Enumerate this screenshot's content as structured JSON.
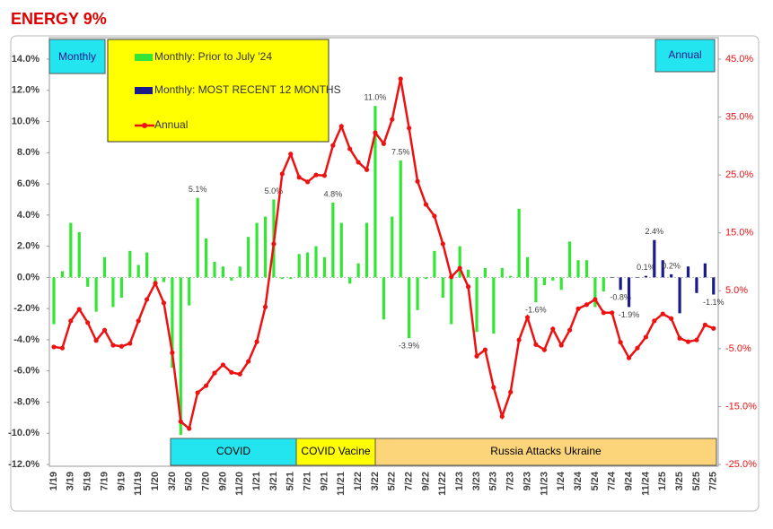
{
  "chart_data": {
    "type": "combo",
    "title": "ENERGY 9%",
    "left_box": "Monthly",
    "right_box": "Annual",
    "bands": [
      "COVID",
      "COVID Vacine",
      "Russia Attacks Ukraine"
    ],
    "categories": [
      "1/19",
      null,
      "3/19",
      null,
      "5/19",
      null,
      "7/19",
      null,
      "9/19",
      null,
      "11/19",
      null,
      "1/20",
      null,
      "3/20",
      null,
      "5/20",
      null,
      "7/20",
      null,
      "9/20",
      null,
      "11/20",
      null,
      "1/21",
      null,
      "3/21",
      null,
      "5/21",
      null,
      "7/21",
      null,
      "9/21",
      null,
      "11/21",
      null,
      "1/22",
      null,
      "3/22",
      null,
      "5/22",
      null,
      "7/22",
      null,
      "9/22",
      null,
      "11/22",
      null,
      "1/23",
      null,
      "3/23",
      null,
      "5/23",
      null,
      "7/23",
      null,
      "9/23",
      null,
      "11/23",
      null,
      "1/24",
      null,
      "3/24",
      null,
      "5/24",
      null,
      "7/24",
      null,
      "9/24",
      null,
      "11/24",
      null,
      "1/25",
      null,
      "3/25",
      null,
      "5/25",
      null,
      "7/25"
    ],
    "series": [
      {
        "name": "Monthly: Prior to July '24",
        "color": "#33e633",
        "kind": "bar",
        "values": [
          -3.0,
          0.4,
          3.5,
          2.9,
          -0.6,
          -2.2,
          1.3,
          -1.9,
          -1.3,
          1.7,
          0.8,
          1.6,
          -0.3,
          -0.3,
          -5.8,
          -10.1,
          -1.8,
          5.1,
          2.5,
          1.0,
          0.7,
          -0.2,
          0.7,
          2.6,
          3.5,
          3.9,
          5.0,
          -0.1,
          -0.1,
          1.5,
          1.6,
          2.0,
          1.3,
          4.8,
          3.5,
          -0.4,
          0.9,
          3.5,
          11.0,
          -2.7,
          3.9,
          7.5,
          -3.9,
          -2.1,
          -0.1,
          1.7,
          -1.3,
          -3.0,
          2.0,
          0.5,
          -3.5,
          0.6,
          -3.6,
          0.6,
          0.1,
          4.4,
          1.3,
          -1.6,
          -0.5,
          -0.2,
          -0.8,
          2.3,
          1.1,
          1.1,
          -1.9,
          -0.9,
          null,
          null,
          null,
          null,
          null,
          null,
          null,
          null,
          null,
          null,
          null,
          null,
          null
        ],
        "value_labels": [
          null,
          null,
          null,
          null,
          null,
          null,
          null,
          null,
          null,
          null,
          null,
          null,
          null,
          null,
          null,
          null,
          null,
          "5.1%",
          null,
          null,
          null,
          null,
          null,
          null,
          null,
          null,
          "5.0%",
          null,
          null,
          null,
          null,
          null,
          null,
          "4.8%",
          null,
          null,
          null,
          null,
          "11.0%",
          null,
          null,
          "7.5%",
          "-3.9%",
          null,
          null,
          null,
          null,
          null,
          null,
          null,
          null,
          null,
          null,
          null,
          null,
          null,
          null,
          "-1.6%",
          null,
          null,
          null,
          null,
          null,
          null,
          null,
          null,
          null,
          null,
          null,
          null,
          null,
          null,
          null,
          null,
          null,
          null,
          null,
          null,
          null
        ]
      },
      {
        "name": "Monthly: MOST RECENT 12 MONTHS",
        "color": "#1a1a8c",
        "kind": "bar",
        "values": [
          null,
          null,
          null,
          null,
          null,
          null,
          null,
          null,
          null,
          null,
          null,
          null,
          null,
          null,
          null,
          null,
          null,
          null,
          null,
          null,
          null,
          null,
          null,
          null,
          null,
          null,
          null,
          null,
          null,
          null,
          null,
          null,
          null,
          null,
          null,
          null,
          null,
          null,
          null,
          null,
          null,
          null,
          null,
          null,
          null,
          null,
          null,
          null,
          null,
          null,
          null,
          null,
          null,
          null,
          null,
          null,
          null,
          null,
          null,
          null,
          null,
          null,
          null,
          null,
          null,
          null,
          0.0,
          -0.8,
          -1.9,
          0.0,
          0.1,
          2.4,
          1.1,
          0.2,
          -2.3,
          0.7,
          -1.0,
          0.9,
          -1.1
        ],
        "value_labels": [
          null,
          null,
          null,
          null,
          null,
          null,
          null,
          null,
          null,
          null,
          null,
          null,
          null,
          null,
          null,
          null,
          null,
          null,
          null,
          null,
          null,
          null,
          null,
          null,
          null,
          null,
          null,
          null,
          null,
          null,
          null,
          null,
          null,
          null,
          null,
          null,
          null,
          null,
          null,
          null,
          null,
          null,
          null,
          null,
          null,
          null,
          null,
          null,
          null,
          null,
          null,
          null,
          null,
          null,
          null,
          null,
          null,
          null,
          null,
          null,
          null,
          null,
          null,
          null,
          null,
          null,
          null,
          "-0.8%",
          "-1.9%",
          null,
          "0.1%",
          "2.4%",
          null,
          "0.2%",
          null,
          null,
          null,
          null,
          "-1.1%"
        ]
      },
      {
        "name": "Annual",
        "color": "#ee1111",
        "kind": "line",
        "axis": "y2",
        "values": [
          -4.7,
          -4.9,
          -0.2,
          1.8,
          -0.5,
          -3.6,
          -1.8,
          -4.4,
          -4.6,
          -4.1,
          -0.2,
          3.5,
          6.3,
          2.9,
          -5.7,
          -17.6,
          -18.8,
          -12.6,
          -11.4,
          -9.2,
          -7.8,
          -9.1,
          -9.4,
          -7.2,
          -3.8,
          2.2,
          13.1,
          25.2,
          28.6,
          24.6,
          23.8,
          25.0,
          24.9,
          30.1,
          33.4,
          29.5,
          27.2,
          25.9,
          32.3,
          30.4,
          34.6,
          41.6,
          33.1,
          23.9,
          19.9,
          17.9,
          13.1,
          7.4,
          8.9,
          5.7,
          -6.3,
          -5.2,
          -11.7,
          -16.7,
          -12.5,
          -3.5,
          0.4,
          -4.3,
          -5.2,
          -1.6,
          -4.4,
          -1.8,
          1.9,
          2.6,
          3.5,
          1.2,
          1.2,
          -3.9,
          -6.6,
          -4.9,
          -3.0,
          -0.2,
          1.0,
          0.2,
          -3.2,
          -3.8,
          -3.5,
          -0.9,
          -1.5
        ]
      }
    ],
    "ylim": [
      -12,
      14
    ],
    "yticks": [
      {
        "value": 14,
        "label": "14.0%"
      },
      {
        "value": 12,
        "label": "12.0%"
      },
      {
        "value": 10,
        "label": "10.0%"
      },
      {
        "value": 8,
        "label": "8.0%"
      },
      {
        "value": 6,
        "label": "6.0%"
      },
      {
        "value": 4,
        "label": "4.0%"
      },
      {
        "value": 2,
        "label": "2.0%"
      },
      {
        "value": 0,
        "label": "0.0%"
      },
      {
        "value": -2,
        "label": "-2.0%"
      },
      {
        "value": -4,
        "label": "-4.0%"
      },
      {
        "value": -6,
        "label": "-6.0%"
      },
      {
        "value": -8,
        "label": "-8.0%"
      },
      {
        "value": -10,
        "label": "-10.0%"
      },
      {
        "value": -12,
        "label": "-12.0%"
      }
    ],
    "y2lim": [
      -25,
      45
    ],
    "y2ticks": [
      {
        "value": 45,
        "label": "45.0%"
      },
      {
        "value": 35,
        "label": "35.0%"
      },
      {
        "value": 25,
        "label": "25.0%"
      },
      {
        "value": 15,
        "label": "15.0%"
      },
      {
        "value": 5,
        "label": "5.0%"
      },
      {
        "value": -5,
        "label": "-5.0%"
      },
      {
        "value": -15,
        "label": "-15.0%"
      },
      {
        "value": -25,
        "label": "-25.0%"
      }
    ]
  }
}
